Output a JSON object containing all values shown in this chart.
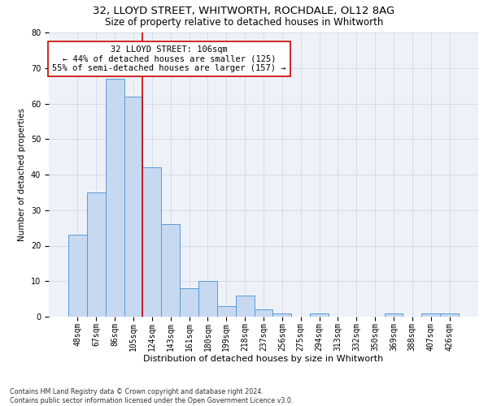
{
  "title1": "32, LLOYD STREET, WHITWORTH, ROCHDALE, OL12 8AG",
  "title2": "Size of property relative to detached houses in Whitworth",
  "xlabel": "Distribution of detached houses by size in Whitworth",
  "ylabel": "Number of detached properties",
  "footnote": "Contains HM Land Registry data © Crown copyright and database right 2024.\nContains public sector information licensed under the Open Government Licence v3.0.",
  "categories": [
    "48sqm",
    "67sqm",
    "86sqm",
    "105sqm",
    "124sqm",
    "143sqm",
    "161sqm",
    "180sqm",
    "199sqm",
    "218sqm",
    "237sqm",
    "256sqm",
    "275sqm",
    "294sqm",
    "313sqm",
    "332sqm",
    "350sqm",
    "369sqm",
    "388sqm",
    "407sqm",
    "426sqm"
  ],
  "values": [
    23,
    35,
    67,
    62,
    42,
    26,
    8,
    10,
    3,
    6,
    2,
    1,
    0,
    1,
    0,
    0,
    0,
    1,
    0,
    1,
    1
  ],
  "bar_color": "#c6d9f0",
  "bar_edge_color": "#5b9bd5",
  "bar_width": 1.0,
  "ylim": [
    0,
    80
  ],
  "yticks": [
    0,
    10,
    20,
    30,
    40,
    50,
    60,
    70,
    80
  ],
  "red_line_x": 3.5,
  "annotation_text": "32 LLOYD STREET: 106sqm\n← 44% of detached houses are smaller (125)\n55% of semi-detached houses are larger (157) →",
  "property_line_color": "#cc0000",
  "grid_color": "#d0d8e8",
  "bg_color": "#eef2f8",
  "title1_fontsize": 9.5,
  "title2_fontsize": 8.5,
  "xlabel_fontsize": 8,
  "ylabel_fontsize": 7.5,
  "tick_fontsize": 7,
  "annotation_fontsize": 7.5,
  "footnote_fontsize": 5.8
}
